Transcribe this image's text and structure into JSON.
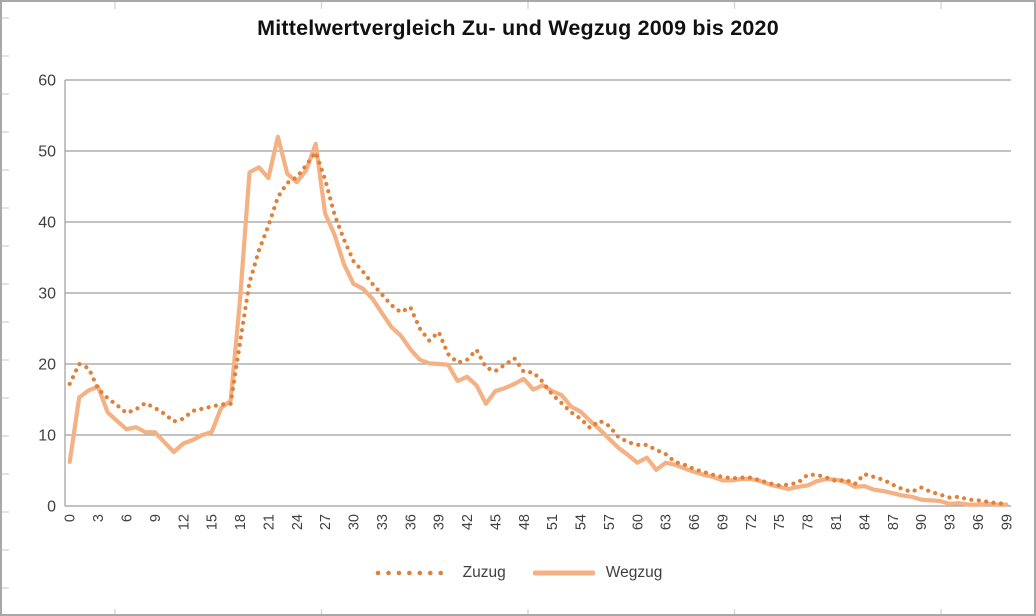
{
  "title": "Mittelwertvergleich Zu- und Wegzug 2009 bis 2020",
  "legend": {
    "zuzug_label": "Zuzug",
    "wegzug_label": "Wegzug"
  },
  "colors": {
    "zuzug": "#E0813B",
    "wegzug": "#F4B183",
    "gridline": "#9E9E9E",
    "axis_text": "#3F3F3F",
    "frame": "#A8A8A8",
    "edge_tick": "#D6D6D6"
  },
  "chart_data": {
    "type": "line",
    "title": "Mittelwertvergleich Zu- und Wegzug 2009 bis 2020",
    "xlabel": "",
    "ylabel": "",
    "ylim": [
      0,
      60
    ],
    "y_ticks": [
      0,
      10,
      20,
      30,
      40,
      50,
      60
    ],
    "x_ticks": [
      0,
      3,
      6,
      9,
      12,
      15,
      18,
      21,
      24,
      27,
      30,
      33,
      36,
      39,
      42,
      45,
      48,
      51,
      54,
      57,
      60,
      63,
      66,
      69,
      72,
      75,
      78,
      81,
      84,
      87,
      90,
      93,
      96,
      99
    ],
    "grid": true,
    "legend_position": "bottom",
    "series": [
      {
        "name": "Zuzug",
        "style": "dotted",
        "color": "#E0813B",
        "values": [
          17.2,
          20.0,
          19.4,
          16.5,
          15.2,
          14.2,
          13.1,
          13.6,
          14.5,
          13.8,
          13.0,
          11.9,
          12.3,
          13.4,
          13.7,
          14.0,
          14.3,
          14.4,
          23.0,
          31.5,
          36.0,
          39.5,
          43.5,
          45.5,
          46.3,
          48.0,
          49.8,
          46.0,
          41.0,
          37.5,
          34.5,
          33.0,
          31.3,
          29.8,
          28.3,
          27.3,
          28.0,
          25.0,
          23.3,
          24.5,
          21.4,
          20.2,
          20.6,
          22.0,
          19.5,
          19.0,
          19.9,
          20.8,
          18.9,
          18.8,
          17.5,
          15.7,
          14.5,
          13.2,
          12.3,
          11.0,
          12.0,
          11.3,
          9.7,
          9.0,
          8.6,
          8.6,
          7.9,
          7.3,
          6.2,
          5.8,
          5.2,
          4.8,
          4.4,
          4.1,
          3.9,
          4.0,
          4.0,
          3.6,
          3.2,
          2.9,
          3.0,
          3.3,
          4.4,
          4.4,
          4.0,
          3.5,
          3.7,
          3.1,
          4.5,
          4.1,
          3.7,
          3.0,
          2.4,
          2.0,
          2.6,
          2.0,
          1.6,
          1.2,
          1.3,
          0.9,
          0.8,
          0.6,
          0.4,
          0.3
        ]
      },
      {
        "name": "Wegzug",
        "style": "solid",
        "color": "#F4B183",
        "values": [
          6.2,
          15.3,
          16.3,
          16.8,
          13.2,
          12.0,
          10.8,
          11.1,
          10.4,
          10.4,
          9.0,
          7.6,
          8.8,
          9.3,
          10.0,
          10.4,
          13.8,
          14.8,
          29.0,
          47.0,
          47.7,
          46.2,
          52.0,
          46.8,
          45.6,
          47.3,
          51.0,
          41.2,
          38.2,
          34.0,
          31.3,
          30.6,
          29.2,
          27.2,
          25.2,
          24.0,
          22.1,
          20.6,
          20.1,
          20.0,
          19.9,
          17.6,
          18.2,
          17.0,
          14.4,
          16.2,
          16.6,
          17.2,
          17.9,
          16.4,
          17.0,
          16.2,
          15.6,
          14.0,
          13.3,
          12.0,
          10.8,
          9.5,
          8.2,
          7.2,
          6.1,
          6.8,
          5.1,
          6.1,
          5.8,
          5.3,
          4.8,
          4.4,
          4.1,
          3.6,
          3.6,
          3.8,
          3.8,
          3.5,
          3.0,
          2.7,
          2.4,
          2.7,
          2.9,
          3.5,
          3.8,
          3.7,
          3.4,
          2.7,
          2.8,
          2.3,
          2.1,
          1.8,
          1.5,
          1.3,
          0.9,
          0.8,
          0.7,
          0.3,
          0.4,
          0.2,
          0.2,
          0.3,
          0.2,
          0.2
        ]
      }
    ]
  }
}
